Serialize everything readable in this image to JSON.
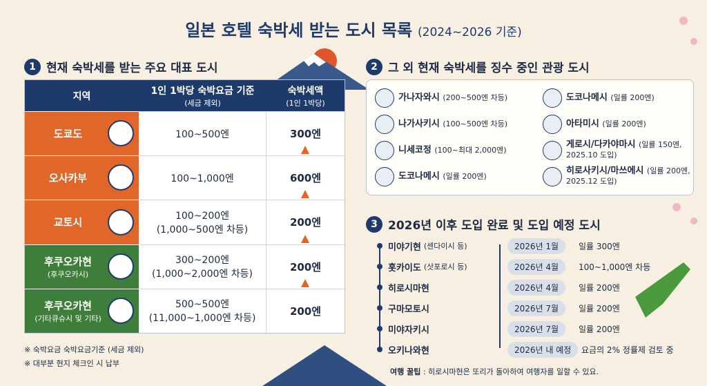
{
  "header": {
    "title": "일본 호텔 숙박세 받는 도시 목록",
    "subtitle": "(2024~2026 기준)"
  },
  "section1": {
    "number": "1",
    "title": "현재 숙박세를 받는 주요 대표 도시",
    "table": {
      "headers": [
        {
          "main": "지역"
        },
        {
          "main": "1인 1박당 숙박요금 기준",
          "sub": "(세금 제외)"
        },
        {
          "main": "숙박세액",
          "sub": "(1인 1박당)"
        }
      ],
      "rows": [
        {
          "region": "도쿄도",
          "rate": "100~500엔",
          "tax": "300엔"
        },
        {
          "region": "오사카부",
          "rate": "100~1,000엔",
          "tax": "600엔"
        },
        {
          "region": "교토시",
          "rate": "100~200엔",
          "rate_note": "(1,000~500엔 차등)",
          "tax": "200엔"
        },
        {
          "region": "후쿠오카현",
          "region_sub": "(후쿠오카시)",
          "rate": "300~200엔",
          "rate_note": "(1,000~2,000엔 차등)",
          "tax": "200엔"
        },
        {
          "region": "후쿠오카현",
          "region_sub": "(기타큐슈시 및 기타)",
          "rate": "500~500엔",
          "rate_note": "(11,000~1,000엔 차등)",
          "tax": "200엔"
        }
      ]
    },
    "notes": [
      "※ 숙박요금 숙박요금기준 (세금 제외)",
      "※ 대부분 현지 체크인 시 납부"
    ]
  },
  "section2": {
    "number": "2",
    "title": "그 외 현재 숙박세를 징수 중인 관광 도시",
    "left": [
      {
        "name": "가나자와시",
        "detail": "(200~500엔 차등)"
      },
      {
        "name": "나가사키시",
        "detail": "(100~500엔 차등)"
      },
      {
        "name": "니세코정",
        "detail": "(100~최대 2,000엔)"
      },
      {
        "name": "도코나메시",
        "detail": "(일률 200엔)"
      }
    ],
    "right": [
      {
        "name": "도코나메시",
        "detail": "(일률 200엔)"
      },
      {
        "name": "아타미시",
        "detail": "(일률 200엔)"
      },
      {
        "name": "게로시/다카야마시",
        "detail": "(일률 150엔, 2025.10 도입)"
      },
      {
        "name": "히로사키시/마쓰에시",
        "detail": "(일률 200엔, 2025.12 도입)"
      }
    ]
  },
  "section3": {
    "number": "3",
    "title": "2026년 이후 도입 완료 및 도입 예정 도시",
    "rows": [
      {
        "name": "미야기현",
        "note": "(센다이시 등)",
        "date": "2026년 1월",
        "detail": "일률 300엔"
      },
      {
        "name": "홋카이도",
        "note": "(삿포로시 등)",
        "date": "2026년 4월",
        "detail": "100~1,000엔 차등"
      },
      {
        "name": "히로시마현",
        "date": "2026년 4월",
        "detail": "일률 200엔"
      },
      {
        "name": "구마모토시",
        "date": "2026년 7월",
        "detail": "일률 200엔"
      },
      {
        "name": "미야자키시",
        "date": "2026년 7월",
        "detail": "일률 200엔"
      },
      {
        "name": "오키나와현",
        "date": "2026년 내 예정",
        "detail": "요금의 2% 정률제 검토 중"
      }
    ],
    "tip": {
      "label": "여행 꿀팁",
      "text": ": 히로시마현은 또리가 돌아하여 여행자를 일할 수 있요."
    }
  }
}
